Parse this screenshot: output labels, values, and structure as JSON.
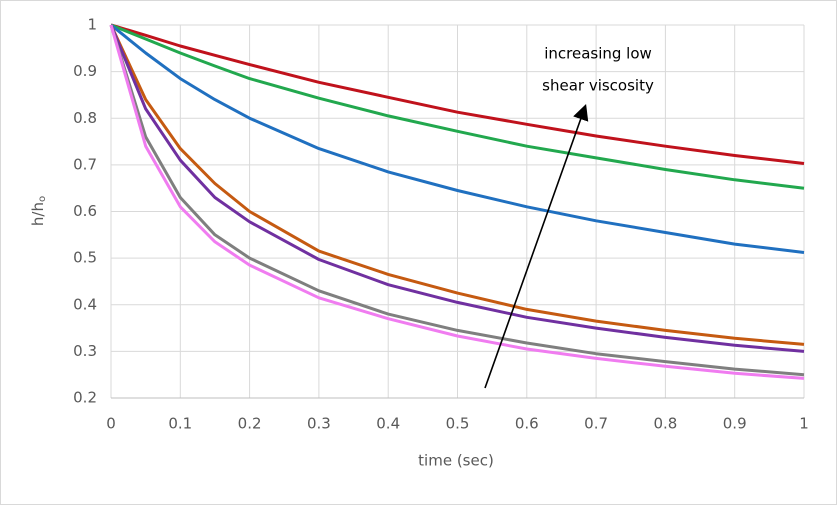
{
  "chart_data": {
    "type": "line",
    "xlabel": "time (sec)",
    "ylabel": "h/h",
    "ylabel_subscript": "o",
    "annotation": [
      "increasing low",
      "shear viscosity"
    ],
    "x": [
      0,
      0.05,
      0.1,
      0.15,
      0.2,
      0.3,
      0.4,
      0.5,
      0.6,
      0.7,
      0.8,
      0.9,
      1
    ],
    "series": [
      {
        "color": "#c0121c",
        "values": [
          1,
          0.978,
          0.955,
          0.935,
          0.915,
          0.877,
          0.845,
          0.813,
          0.787,
          0.762,
          0.74,
          0.72,
          0.703
        ]
      },
      {
        "color": "#22a84e",
        "values": [
          1,
          0.97,
          0.94,
          0.912,
          0.885,
          0.843,
          0.805,
          0.772,
          0.74,
          0.715,
          0.69,
          0.668,
          0.65
        ]
      },
      {
        "color": "#2070c0",
        "values": [
          1,
          0.94,
          0.885,
          0.84,
          0.8,
          0.735,
          0.685,
          0.645,
          0.61,
          0.58,
          0.555,
          0.53,
          0.512
        ]
      },
      {
        "color": "#c55a11",
        "values": [
          1,
          0.84,
          0.735,
          0.66,
          0.6,
          0.515,
          0.465,
          0.425,
          0.39,
          0.365,
          0.345,
          0.328,
          0.315
        ]
      },
      {
        "color": "#7030a0",
        "values": [
          1,
          0.82,
          0.71,
          0.63,
          0.578,
          0.497,
          0.443,
          0.405,
          0.373,
          0.35,
          0.33,
          0.313,
          0.3
        ]
      },
      {
        "color": "#7f7f7f",
        "values": [
          1,
          0.76,
          0.63,
          0.55,
          0.5,
          0.43,
          0.38,
          0.345,
          0.318,
          0.295,
          0.278,
          0.262,
          0.25
        ]
      },
      {
        "color": "#f07cf0",
        "values": [
          1,
          0.74,
          0.61,
          0.535,
          0.485,
          0.415,
          0.37,
          0.333,
          0.305,
          0.285,
          0.268,
          0.253,
          0.242
        ]
      }
    ],
    "xlim": [
      0,
      1
    ],
    "xticks": [
      0,
      0.1,
      0.2,
      0.3,
      0.4,
      0.5,
      0.6,
      0.7,
      0.8,
      0.9,
      1
    ],
    "ylim": [
      0.2,
      1
    ],
    "yticks": [
      0.2,
      0.3,
      0.4,
      0.5,
      0.6,
      0.7,
      0.8,
      0.9,
      1
    ],
    "grid": true
  }
}
